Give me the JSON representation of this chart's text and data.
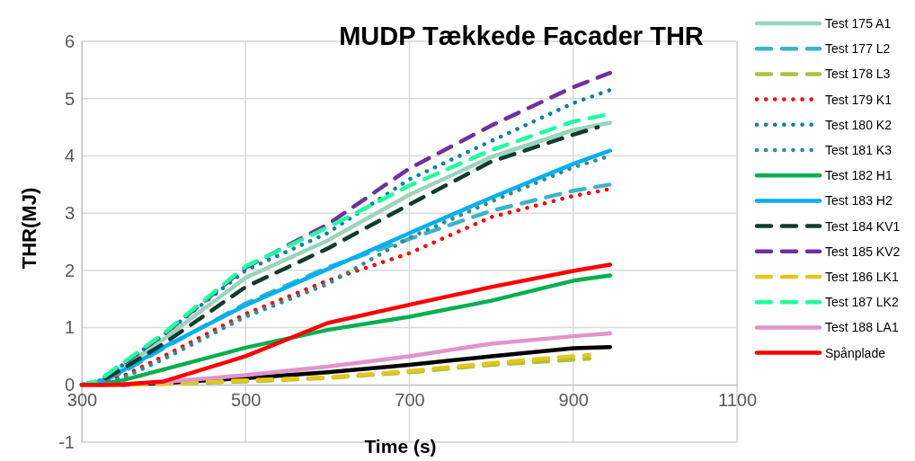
{
  "chart_data": {
    "type": "line",
    "title": "MUDP Tækkede Facader THR",
    "xlabel": "Time (s)",
    "ylabel": "THR(MJ)",
    "xlim": [
      300,
      1100
    ],
    "xticks": [
      300,
      500,
      700,
      900,
      1100
    ],
    "ylim": [
      -1,
      6
    ],
    "yticks": [
      -1,
      0,
      1,
      2,
      3,
      4,
      5,
      6
    ],
    "grid": true,
    "legend": "right",
    "x": [
      300,
      320,
      350,
      400,
      500,
      600,
      700,
      800,
      900,
      945
    ],
    "series": [
      {
        "color": "#000000",
        "line_style": "solid",
        "values": [
          0,
          0,
          0,
          0.03,
          0.12,
          0.22,
          0.35,
          0.5,
          0.64,
          0.66
        ]
      },
      {
        "name": "Test 175 A1",
        "color": "#9bd3bb",
        "line_style": "solid",
        "values": [
          0,
          0.05,
          0.3,
          0.8,
          1.87,
          2.52,
          3.32,
          3.98,
          4.45,
          4.58
        ]
      },
      {
        "name": "Test 177 L2",
        "color": "#3ab5c8",
        "line_style": "dashed",
        "values": [
          0,
          0.03,
          0.22,
          0.64,
          1.42,
          2.05,
          2.55,
          3.04,
          3.39,
          3.5
        ]
      },
      {
        "name": "Test 178 L3",
        "color": "#a9c23f",
        "line_style": "dashed",
        "x": [
          300,
          320,
          350,
          400,
          500,
          600,
          700,
          800,
          900,
          920
        ],
        "values": [
          0,
          0,
          0,
          0.02,
          0.06,
          0.12,
          0.22,
          0.35,
          0.44,
          0.46
        ]
      },
      {
        "name": "Test 179 K1",
        "color": "#ff0000",
        "line_style": "dotted",
        "values": [
          0,
          0.02,
          0.15,
          0.5,
          1.24,
          1.82,
          2.3,
          2.93,
          3.3,
          3.42
        ]
      },
      {
        "name": "Test 180 K2",
        "color": "#0080b4",
        "line_style": "dotted",
        "values": [
          0,
          0.06,
          0.35,
          0.88,
          2.0,
          2.65,
          3.59,
          4.26,
          4.92,
          5.15
        ]
      },
      {
        "name": "Test 181 K3",
        "color": "#2e8b97",
        "line_style": "dotted",
        "values": [
          0,
          0.01,
          0.12,
          0.45,
          1.19,
          1.76,
          2.57,
          3.2,
          3.8,
          4.0
        ]
      },
      {
        "name": "Test 182 H1",
        "color": "#00b050",
        "line_style": "solid",
        "values": [
          0,
          0.01,
          0.08,
          0.27,
          0.65,
          0.96,
          1.19,
          1.47,
          1.82,
          1.91
        ]
      },
      {
        "name": "Test 183 H2",
        "color": "#00b0f0",
        "line_style": "solid",
        "values": [
          0,
          0.04,
          0.25,
          0.66,
          1.39,
          2.02,
          2.65,
          3.27,
          3.86,
          4.09
        ]
      },
      {
        "name": "Test 184 KV1",
        "color": "#0f3d2e",
        "line_style": "dashed",
        "x": [
          300,
          320,
          350,
          400,
          500,
          600,
          700,
          800,
          900,
          930
        ],
        "values": [
          0,
          0.04,
          0.28,
          0.72,
          1.71,
          2.38,
          3.15,
          3.9,
          4.37,
          4.5
        ]
      },
      {
        "name": "Test 185 KV2",
        "color": "#7030a0",
        "line_style": "dashed",
        "values": [
          0,
          0.06,
          0.36,
          0.88,
          2.05,
          2.8,
          3.78,
          4.53,
          5.2,
          5.45
        ]
      },
      {
        "name": "Test 186 LK1",
        "color": "#e6c619",
        "line_style": "dashed",
        "x": [
          300,
          320,
          350,
          400,
          500,
          600,
          700,
          800,
          900,
          920
        ],
        "values": [
          0,
          0,
          0,
          0.02,
          0.08,
          0.13,
          0.24,
          0.38,
          0.5,
          0.52
        ]
      },
      {
        "name": "Test 187 LK2",
        "color": "#1eff9c",
        "line_style": "dashed",
        "values": [
          0,
          0.07,
          0.38,
          0.9,
          2.07,
          2.75,
          3.48,
          4.1,
          4.6,
          4.73
        ]
      },
      {
        "name": "Test 188 LA1",
        "color": "#e094cc",
        "line_style": "solid",
        "values": [
          0,
          0,
          0.01,
          0.05,
          0.17,
          0.32,
          0.5,
          0.72,
          0.85,
          0.9
        ]
      },
      {
        "name": "Spånplade",
        "color": "#ff0000",
        "line_style": "solid",
        "values": [
          0,
          0,
          0.01,
          0.06,
          0.5,
          1.08,
          1.4,
          1.71,
          1.99,
          2.1
        ]
      }
    ]
  }
}
